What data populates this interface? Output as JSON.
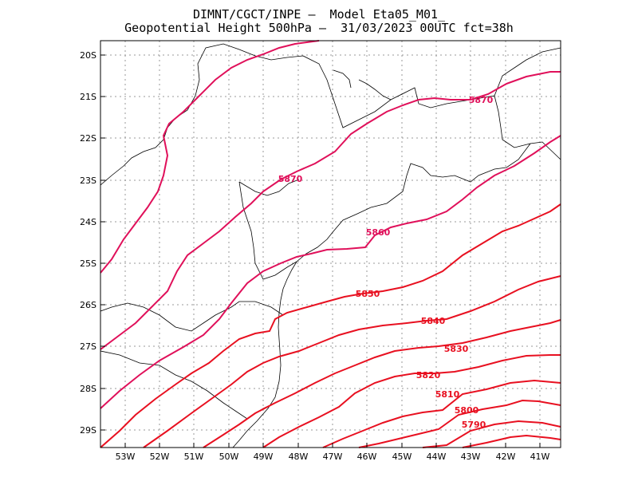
{
  "title_line1": "DIMNT/CGCT/INPE –  Model Eta05_M01_",
  "title_line2": "Geopotential Height 500hPa –  31/03/2023 00UTC fct=38h",
  "lat_labels": [
    "20S",
    "21S",
    "22S",
    "23S",
    "24S",
    "25S",
    "26S",
    "27S",
    "28S",
    "29S"
  ],
  "lon_labels": [
    "53W",
    "52W",
    "51W",
    "50W",
    "49W",
    "48W",
    "47W",
    "46W",
    "45W",
    "44W",
    "43W",
    "42W",
    "41W"
  ],
  "contour_labels": [
    "5870",
    "5870",
    "5860",
    "5850",
    "5840",
    "5830",
    "5820",
    "5810",
    "5800",
    "5790"
  ],
  "colors": {
    "high_contours": "#e0105a",
    "low_contours": "#e81020",
    "grid": "#999999",
    "coast": "#000000"
  },
  "chart_data": {
    "type": "contour",
    "variable": "Geopotential Height 500hPa",
    "lon_range": [
      -53.6,
      -40.6
    ],
    "lat_range": [
      -29.4,
      -19.7
    ],
    "levels": [
      5790,
      5800,
      5810,
      5820,
      5830,
      5840,
      5850,
      5860,
      5870,
      5880,
      5890
    ],
    "grid": true
  }
}
